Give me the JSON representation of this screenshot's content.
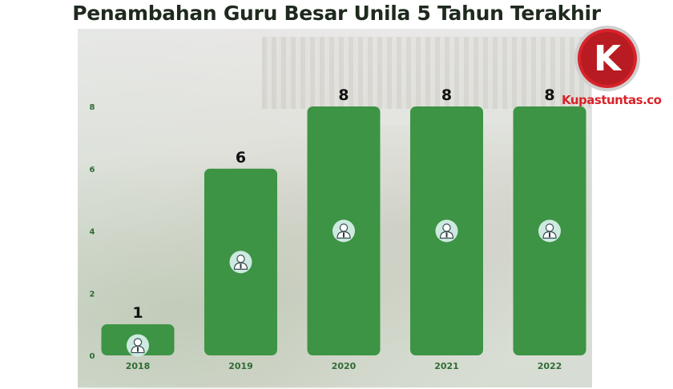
{
  "title": "Penambahan Guru Besar Unila 5 Tahun Terakhir",
  "brand": "Kupastuntas.co",
  "logo_letter": "K",
  "colors": {
    "bar": "#3d9444",
    "icon_circle": "#cdeae0",
    "brand_red": "#d8232a"
  },
  "chart_data": {
    "type": "bar",
    "title": "Penambahan Guru Besar Unila 5 Tahun Terakhir",
    "categories": [
      "2018",
      "2019",
      "2020",
      "2021",
      "2022"
    ],
    "values": [
      1,
      6,
      8,
      8,
      8
    ],
    "data_labels": [
      "1",
      "6",
      "8",
      "8",
      "8"
    ],
    "yticks": [
      0,
      2,
      4,
      6,
      8
    ],
    "ylim": [
      0,
      8
    ],
    "xlabel": "",
    "ylabel": "",
    "grid": false,
    "bar_icon": "person-icon"
  }
}
